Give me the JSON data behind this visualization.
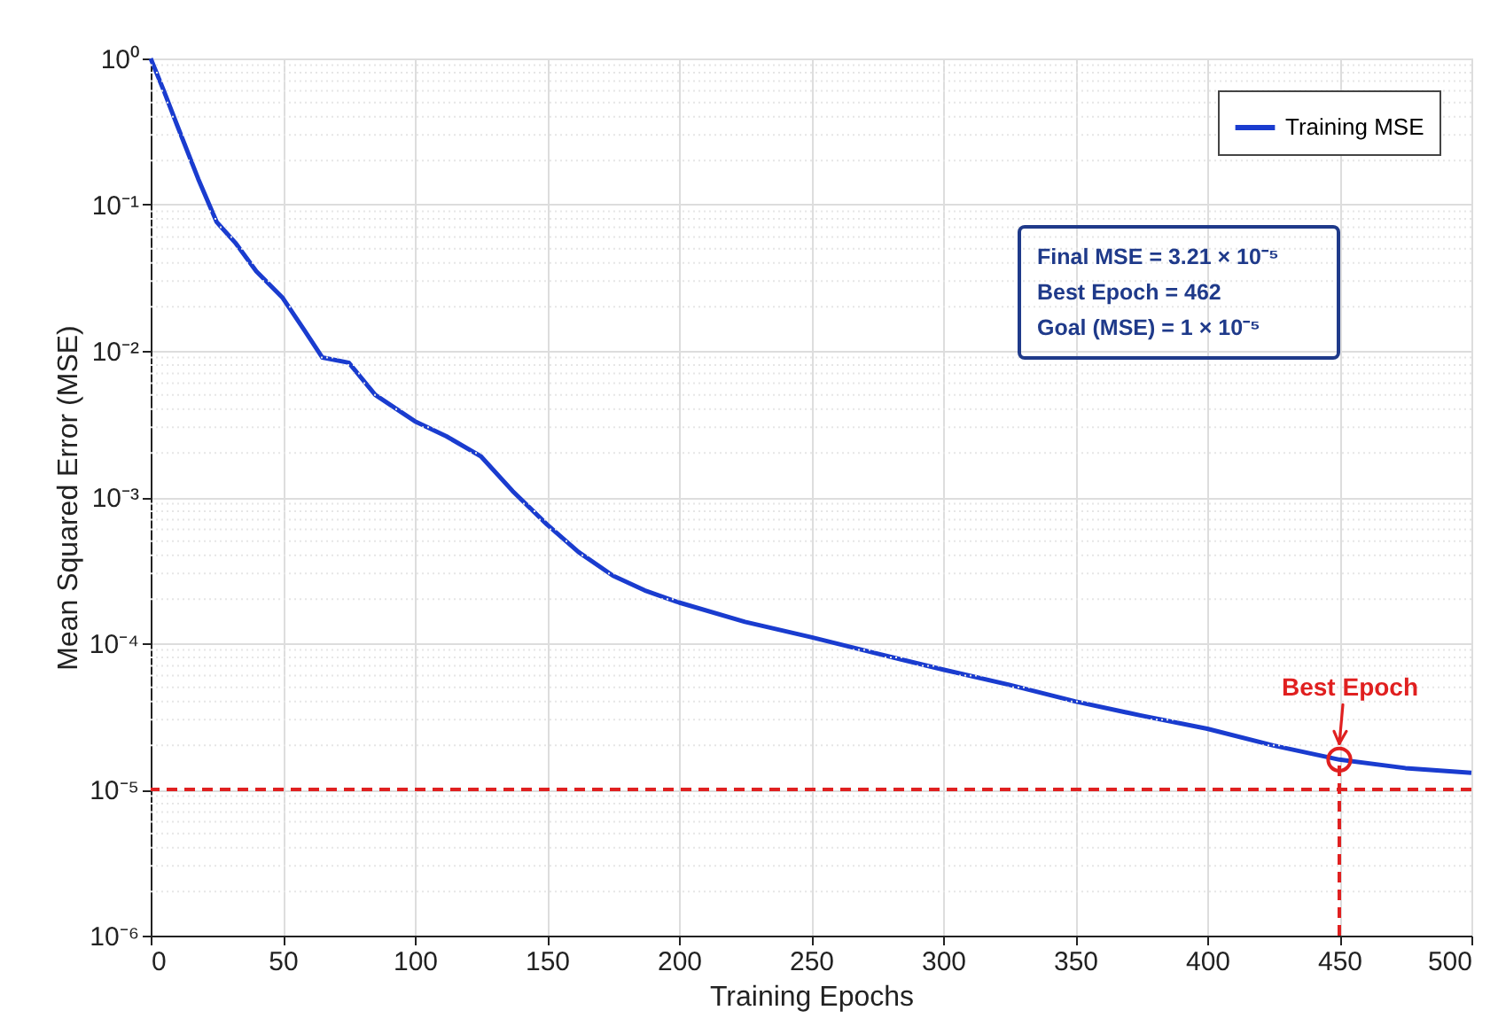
{
  "chart_data": {
    "type": "line",
    "xlabel": "Training Epochs",
    "ylabel": "Mean Squared Error (MSE)",
    "log": "y",
    "grid": true,
    "legend": "top right",
    "line_style": "solid",
    "marker": "none",
    "xlim": [
      0,
      500
    ],
    "xticks": [
      0,
      50,
      100,
      150,
      200,
      250,
      300,
      350,
      400,
      450,
      500
    ],
    "ylim": [
      1e-06,
      1
    ],
    "yticks": [
      {
        "value": 1,
        "label": "10⁰"
      },
      {
        "value": 0.1,
        "label": "10⁻¹"
      },
      {
        "value": 0.01,
        "label": "10⁻²"
      },
      {
        "value": 0.001,
        "label": "10⁻³"
      },
      {
        "value": 0.0001,
        "label": "10⁻⁴"
      },
      {
        "value": 1e-05,
        "label": "10⁻⁵"
      },
      {
        "value": 1e-06,
        "label": "10⁻⁶"
      }
    ],
    "x": [
      0,
      5,
      10,
      18,
      25,
      32,
      40,
      50,
      58,
      65,
      75,
      85,
      100,
      112,
      125,
      137,
      150,
      162,
      175,
      187,
      200,
      225,
      250,
      275,
      300,
      325,
      350,
      375,
      400,
      425,
      450,
      475,
      500
    ],
    "series": [
      {
        "name": "Training MSE",
        "color": "#1a3ccf",
        "values": [
          1,
          0.6,
          0.35,
          0.15,
          0.076,
          0.055,
          0.035,
          0.023,
          0.014,
          0.009,
          0.0083,
          0.005,
          0.0033,
          0.0026,
          0.0019,
          0.0011,
          0.00065,
          0.00042,
          0.00029,
          0.00023,
          0.00019,
          0.00014,
          0.00011,
          8.5e-05,
          6.6e-05,
          5.2e-05,
          4e-05,
          3.2e-05,
          2.6e-05,
          2e-05,
          1.6e-05,
          1.4e-05,
          1.3e-05
        ]
      },
      {
        "type": "scatter",
        "marker": "circle",
        "color": "#e02020",
        "x": [
          450
        ],
        "values": [
          1.6e-05
        ]
      }
    ],
    "ref_lines": [
      {
        "axis": "y",
        "value": 1e-05,
        "label": null,
        "color": "#e02020",
        "line_style": "dashed"
      },
      {
        "axis": "x",
        "value": 450,
        "label": null,
        "color": "#e02020",
        "line_style": "dashed"
      }
    ],
    "annotations": [
      {
        "text": "Best Epoch",
        "x": 450,
        "y": 1.6e-05
      },
      "Final MSE = 3.21 × 10⁻⁵",
      "Best Epoch = 462",
      "Goal (MSE) = 1 × 10⁻⁵"
    ]
  }
}
